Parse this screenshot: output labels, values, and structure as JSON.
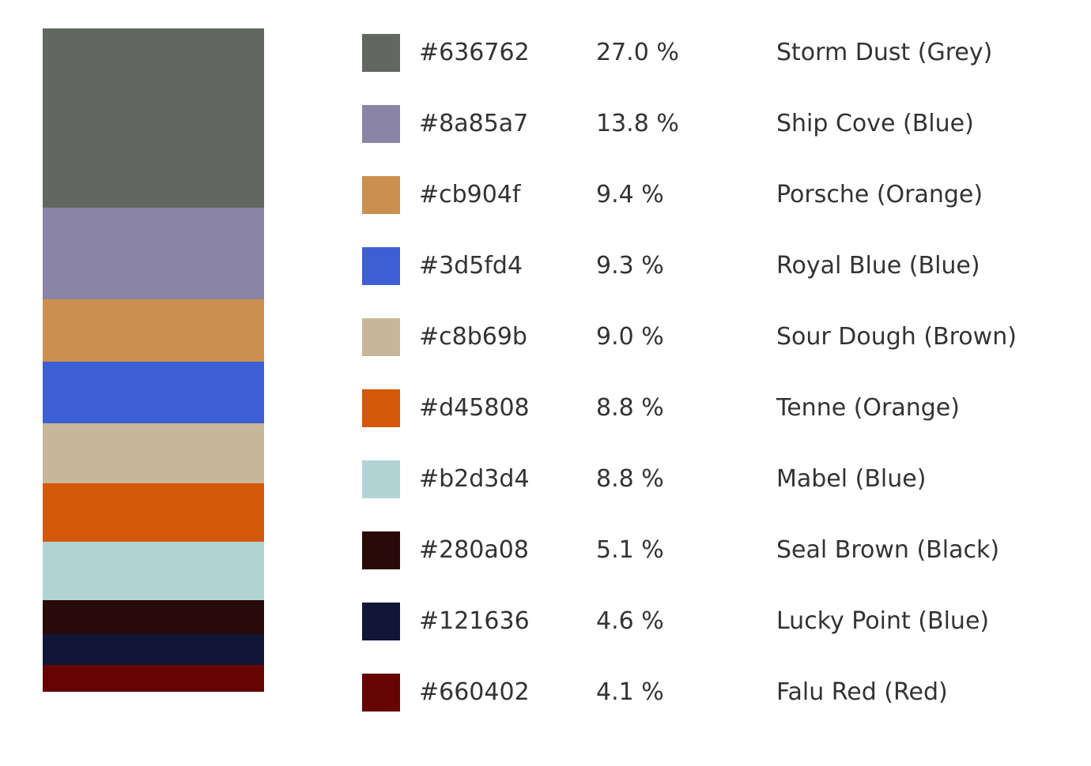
{
  "chart_data": {
    "type": "bar",
    "stacked": true,
    "colors": [
      {
        "hex": "#636762",
        "percent": 27.0,
        "percent_label": "27.0 %",
        "name": "Storm Dust (Grey)"
      },
      {
        "hex": "#8a85a7",
        "percent": 13.8,
        "percent_label": "13.8 %",
        "name": "Ship Cove (Blue)"
      },
      {
        "hex": "#cb904f",
        "percent": 9.4,
        "percent_label": "9.4 %",
        "name": "Porsche (Orange)"
      },
      {
        "hex": "#3d5fd4",
        "percent": 9.3,
        "percent_label": "9.3 %",
        "name": "Royal Blue (Blue)"
      },
      {
        "hex": "#c8b69b",
        "percent": 9.0,
        "percent_label": "9.0 %",
        "name": "Sour Dough (Brown)"
      },
      {
        "hex": "#d45808",
        "percent": 8.8,
        "percent_label": "8.8 %",
        "name": "Tenne (Orange)"
      },
      {
        "hex": "#b2d3d4",
        "percent": 8.8,
        "percent_label": "8.8 %",
        "name": "Mabel (Blue)"
      },
      {
        "hex": "#280a08",
        "percent": 5.1,
        "percent_label": "5.1 %",
        "name": "Seal Brown (Black)"
      },
      {
        "hex": "#121636",
        "percent": 4.6,
        "percent_label": "4.6 %",
        "name": "Lucky Point (Blue)"
      },
      {
        "hex": "#660402",
        "percent": 4.1,
        "percent_label": "4.1 %",
        "name": "Falu Red (Red)"
      }
    ]
  }
}
